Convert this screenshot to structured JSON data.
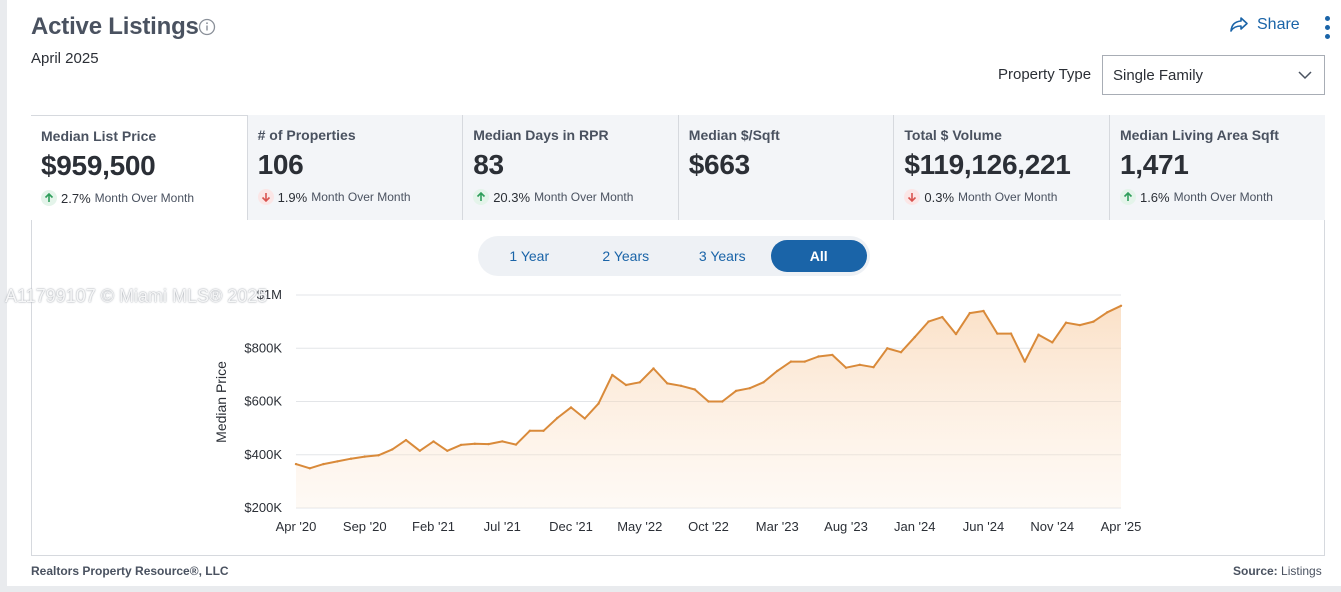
{
  "header": {
    "title": "Active Listings",
    "subtitle": "April 2025",
    "share_label": "Share",
    "property_type_label": "Property Type",
    "property_type_value": "Single Family"
  },
  "kpis": [
    {
      "label": "Median List Price",
      "value": "$959,500",
      "pct": "2.7%",
      "period": "Month Over Month",
      "direction": "up"
    },
    {
      "label": "# of Properties",
      "value": "106",
      "pct": "1.9%",
      "period": "Month Over Month",
      "direction": "down"
    },
    {
      "label": "Median Days in RPR",
      "value": "83",
      "pct": "20.3%",
      "period": "Month Over Month",
      "direction": "up"
    },
    {
      "label": "Median $/Sqft",
      "value": "$663",
      "pct": "",
      "period": "",
      "direction": ""
    },
    {
      "label": "Total $ Volume",
      "value": "$119,126,221",
      "pct": "0.3%",
      "period": "Month Over Month",
      "direction": "down"
    },
    {
      "label": "Median Living Area Sqft",
      "value": "1,471",
      "pct": "1.6%",
      "period": "Month Over Month",
      "direction": "up"
    }
  ],
  "range_buttons": [
    "1 Year",
    "2 Years",
    "3 Years",
    "All"
  ],
  "range_active": "All",
  "watermark": "A11799107 © Miami MLS® 2025",
  "footer": {
    "left": "Realtors Property Resource",
    "left_suffix": "®, LLC",
    "right_label": "Source:",
    "right_value": "Listings"
  },
  "colors": {
    "accent": "#1a64a8",
    "line": "#d98a3a",
    "up": "#2f9e5b",
    "down": "#d9534f"
  },
  "chart_data": {
    "type": "area",
    "ylabel": "Median Price",
    "xlabel": "",
    "ylim": [
      200000,
      1000000
    ],
    "y_ticks": [
      {
        "value": 200000,
        "label": "$200K"
      },
      {
        "value": 400000,
        "label": "$400K"
      },
      {
        "value": 600000,
        "label": "$600K"
      },
      {
        "value": 800000,
        "label": "$800K"
      },
      {
        "value": 1000000,
        "label": "$1M"
      }
    ],
    "x_ticks": [
      "Apr '20",
      "Sep '20",
      "Feb '21",
      "Jul '21",
      "Dec '21",
      "May '22",
      "Oct '22",
      "Mar '23",
      "Aug '23",
      "Jan '24",
      "Jun '24",
      "Nov '24",
      "Apr '25"
    ],
    "x_start": "Apr '20",
    "x_end": "Apr '25",
    "grid": true,
    "series": [
      {
        "values": [
          365000,
          349000,
          365000,
          375000,
          385000,
          393000,
          398000,
          420000,
          455000,
          415000,
          450000,
          415000,
          437000,
          441000,
          440000,
          450000,
          438000,
          490000,
          490000,
          538000,
          578000,
          536000,
          592000,
          700000,
          662000,
          672000,
          724000,
          668000,
          659000,
          645000,
          600000,
          600000,
          640000,
          650000,
          672000,
          715000,
          750000,
          750000,
          769000,
          775000,
          727000,
          738000,
          729000,
          800000,
          785000,
          842000,
          900000,
          917000,
          853000,
          932000,
          940000,
          855000,
          855000,
          750000,
          851000,
          822000,
          896000,
          887000,
          900000,
          935000,
          959500
        ]
      }
    ]
  }
}
